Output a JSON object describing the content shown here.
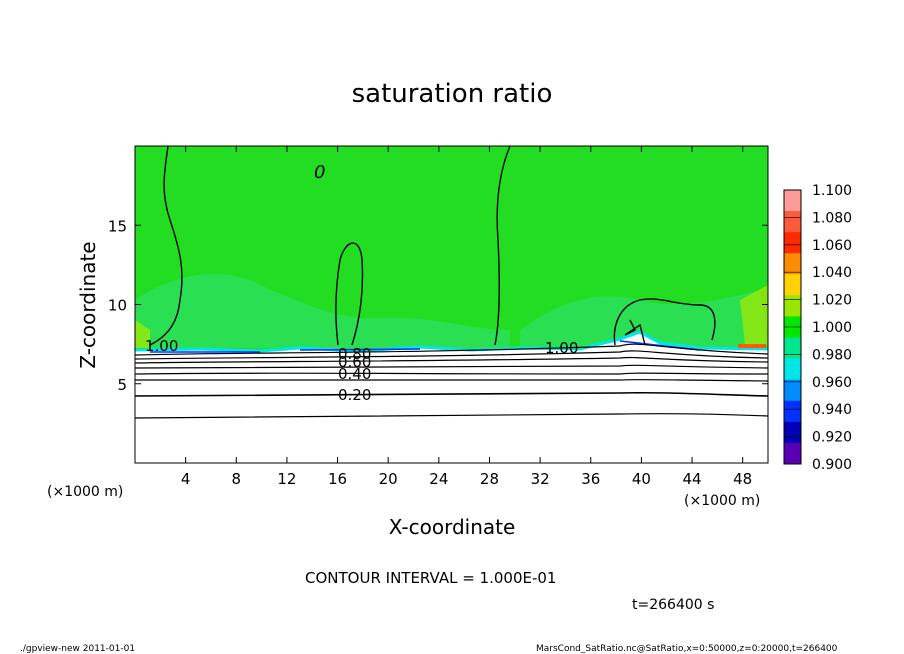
{
  "chart_data": {
    "type": "heatmap",
    "title": "saturation ratio",
    "xlabel": "X-coordinate",
    "ylabel": "Z-coordinate",
    "x_unit_left": "(×1000 m)",
    "x_unit_right": "(×1000 m)",
    "y_unit": "(×1000 m)",
    "xlim": [
      0,
      50
    ],
    "ylim": [
      0,
      20
    ],
    "x_ticks": [
      4,
      8,
      12,
      16,
      20,
      24,
      28,
      32,
      36,
      40,
      44,
      48
    ],
    "y_ticks": [
      5,
      10,
      15
    ],
    "contour_interval_text": "CONTOUR INTERVAL = 1.000E-01",
    "time_text": "t=266400 s",
    "contour_labels": [
      {
        "text": "1.00",
        "x": 1.5,
        "y": 7.3
      },
      {
        "text": "1.00",
        "x": 33.5,
        "y": 7.3
      },
      {
        "text": "0.80",
        "x": 17.5,
        "y": 6.9
      },
      {
        "text": "0.60",
        "x": 17.5,
        "y": 6.5
      },
      {
        "text": "0.40",
        "x": 17.5,
        "y": 5.6
      },
      {
        "text": "0.20",
        "x": 17.5,
        "y": 4.4
      },
      {
        "text": "0",
        "x": 13.9,
        "y": 18.2
      }
    ],
    "colorbar": {
      "levels": [
        "1.100",
        "1.080",
        "1.060",
        "1.040",
        "1.020",
        "1.000",
        "0.980",
        "0.960",
        "0.940",
        "0.920",
        "0.900"
      ],
      "colors": [
        "#ff9a9a",
        "#ff5a3c",
        "#ff2a00",
        "#ff8c00",
        "#ffd200",
        "#99e600",
        "#00e600",
        "#00e68c",
        "#00e6e6",
        "#008cff",
        "#0032ff",
        "#0000b4",
        "#5a00b4"
      ]
    },
    "fill_colors": {
      "saturated": "#22dd22",
      "low": "#ffffff",
      "edge": "#00e6e6"
    }
  },
  "footer": {
    "left": "./gpview-new   2011-01-01",
    "right": "MarsCond_SatRatio.nc@SatRatio,x=0:50000,z=0:20000,t=266400"
  }
}
